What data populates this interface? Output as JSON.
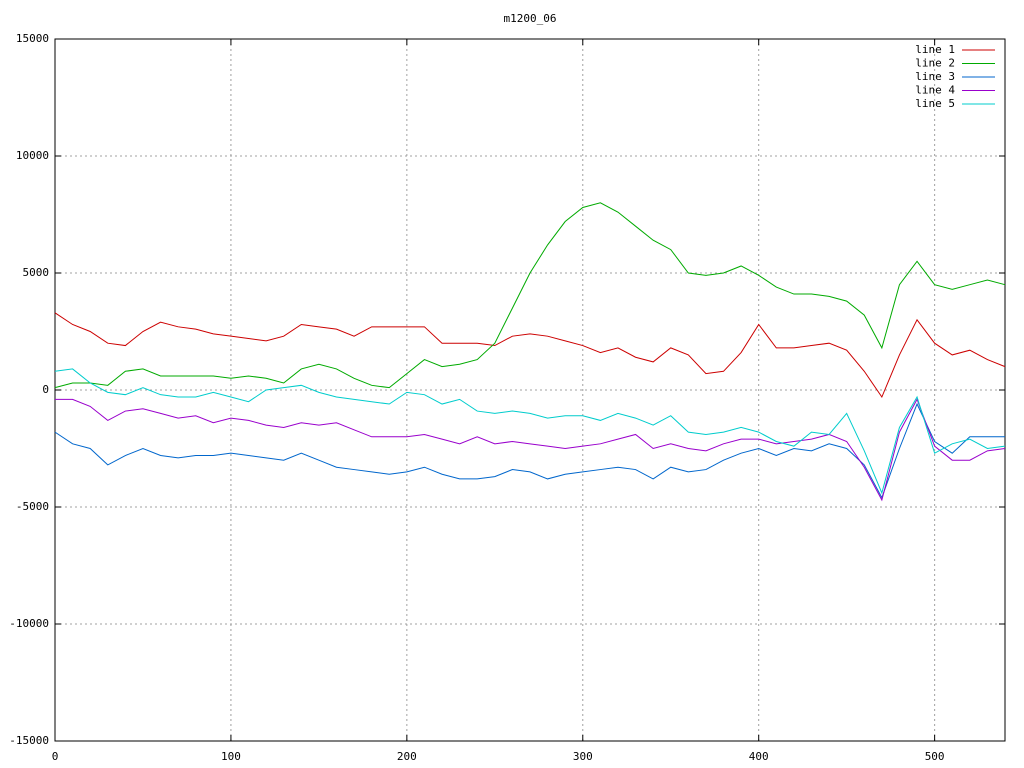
{
  "chart_data": {
    "type": "line",
    "title": "m1200_06",
    "x": [
      0,
      10,
      20,
      30,
      40,
      50,
      60,
      70,
      80,
      90,
      100,
      110,
      120,
      130,
      140,
      150,
      160,
      170,
      180,
      190,
      200,
      210,
      220,
      230,
      240,
      250,
      260,
      270,
      280,
      290,
      300,
      310,
      320,
      330,
      340,
      350,
      360,
      370,
      380,
      390,
      400,
      410,
      420,
      430,
      440,
      450,
      460,
      470,
      480,
      490,
      500,
      510,
      520,
      530,
      540
    ],
    "series": [
      {
        "name": "line 1",
        "color": "#cc0000",
        "values": [
          3300,
          2800,
          2500,
          2000,
          1900,
          2500,
          2900,
          2700,
          2600,
          2400,
          2300,
          2200,
          2100,
          2300,
          2800,
          2700,
          2600,
          2300,
          2700,
          2700,
          2700,
          2700,
          2000,
          2000,
          2000,
          1900,
          2300,
          2400,
          2300,
          2100,
          1900,
          1600,
          1800,
          1400,
          1200,
          1800,
          1500,
          700,
          800,
          1600,
          2800,
          1800,
          1800,
          1900,
          2000,
          1700,
          800,
          -300,
          1500,
          3000,
          2000,
          1500,
          1700,
          1300,
          1000
        ]
      },
      {
        "name": "line 2",
        "color": "#00aa00",
        "values": [
          100,
          300,
          300,
          200,
          800,
          900,
          600,
          600,
          600,
          600,
          500,
          600,
          500,
          300,
          900,
          1100,
          900,
          500,
          200,
          100,
          700,
          1300,
          1000,
          1100,
          1300,
          2000,
          3500,
          5000,
          6200,
          7200,
          7800,
          8000,
          7600,
          7000,
          6400,
          6000,
          5000,
          4900,
          5000,
          5300,
          4900,
          4400,
          4100,
          4100,
          4000,
          3800,
          3200,
          1800,
          4500,
          5500,
          4500,
          4300,
          4500,
          4700,
          4500
        ]
      },
      {
        "name": "line 3",
        "color": "#0066cc",
        "values": [
          -1800,
          -2300,
          -2500,
          -3200,
          -2800,
          -2500,
          -2800,
          -2900,
          -2800,
          -2800,
          -2700,
          -2800,
          -2900,
          -3000,
          -2700,
          -3000,
          -3300,
          -3400,
          -3500,
          -3600,
          -3500,
          -3300,
          -3600,
          -3800,
          -3800,
          -3700,
          -3400,
          -3500,
          -3800,
          -3600,
          -3500,
          -3400,
          -3300,
          -3400,
          -3800,
          -3300,
          -3500,
          -3400,
          -3000,
          -2700,
          -2500,
          -2800,
          -2500,
          -2600,
          -2300,
          -2500,
          -3200,
          -4600,
          -2500,
          -600,
          -2200,
          -2700,
          -2000,
          -2000,
          -2000
        ]
      },
      {
        "name": "line 4",
        "color": "#9900cc",
        "values": [
          -400,
          -400,
          -700,
          -1300,
          -900,
          -800,
          -1000,
          -1200,
          -1100,
          -1400,
          -1200,
          -1300,
          -1500,
          -1600,
          -1400,
          -1500,
          -1400,
          -1700,
          -2000,
          -2000,
          -2000,
          -1900,
          -2100,
          -2300,
          -2000,
          -2300,
          -2200,
          -2300,
          -2400,
          -2500,
          -2400,
          -2300,
          -2100,
          -1900,
          -2500,
          -2300,
          -2500,
          -2600,
          -2300,
          -2100,
          -2100,
          -2300,
          -2200,
          -2100,
          -1900,
          -2200,
          -3300,
          -4700,
          -1800,
          -400,
          -2400,
          -3000,
          -3000,
          -2600,
          -2500
        ]
      },
      {
        "name": "line 5",
        "color": "#00cccc",
        "values": [
          800,
          900,
          300,
          -100,
          -200,
          100,
          -200,
          -300,
          -300,
          -100,
          -300,
          -500,
          0,
          100,
          200,
          -100,
          -300,
          -400,
          -500,
          -600,
          -100,
          -200,
          -600,
          -400,
          -900,
          -1000,
          -900,
          -1000,
          -1200,
          -1100,
          -1100,
          -1300,
          -1000,
          -1200,
          -1500,
          -1100,
          -1800,
          -1900,
          -1800,
          -1600,
          -1800,
          -2200,
          -2400,
          -1800,
          -1900,
          -1000,
          -2600,
          -4400,
          -1600,
          -300,
          -2700,
          -2300,
          -2100,
          -2500,
          -2400
        ]
      }
    ],
    "xlim": [
      0,
      540
    ],
    "xticks": [
      0,
      100,
      200,
      300,
      400,
      500
    ],
    "ylim": [
      -15000,
      15000
    ],
    "yticks": [
      -15000,
      -10000,
      -5000,
      0,
      5000,
      10000,
      15000
    ],
    "grid": true,
    "legend": "top-right"
  }
}
